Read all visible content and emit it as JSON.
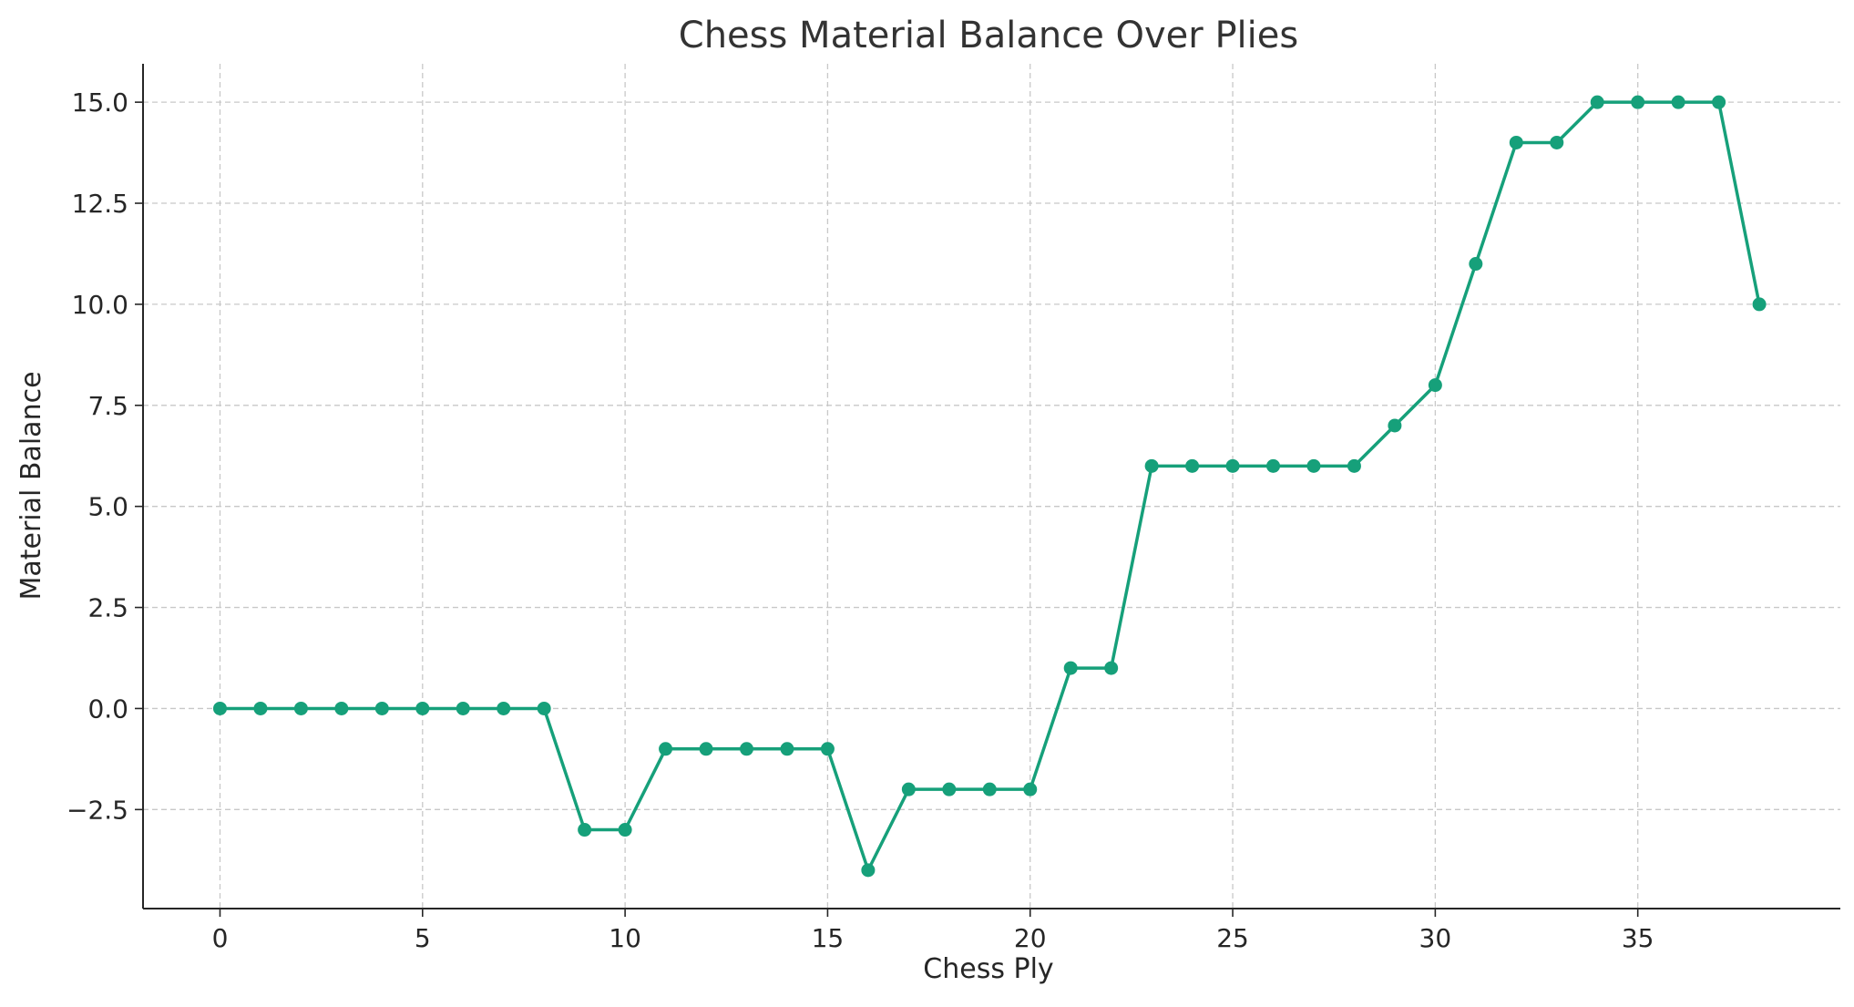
{
  "chart_data": {
    "type": "line",
    "title": "Chess Material Balance Over Plies",
    "xlabel": "Chess Ply",
    "ylabel": "Material Balance",
    "xlim": [
      -1.9,
      40
    ],
    "ylim": [
      -4.95,
      15.95
    ],
    "x_ticks": [
      0,
      5,
      10,
      15,
      20,
      25,
      30,
      35
    ],
    "x_tick_labels": [
      "0",
      "5",
      "10",
      "15",
      "20",
      "25",
      "30",
      "35"
    ],
    "y_ticks": [
      -2.5,
      0,
      2.5,
      5,
      7.5,
      10,
      12.5,
      15
    ],
    "y_tick_labels": [
      "−2.5",
      "0.0",
      "2.5",
      "5.0",
      "7.5",
      "10.0",
      "12.5",
      "15.0"
    ],
    "grid": true,
    "legend": "none",
    "series": [
      {
        "color": "#16a07a",
        "marker": "circle",
        "x": [
          0,
          1,
          2,
          3,
          4,
          5,
          6,
          7,
          8,
          9,
          10,
          11,
          12,
          13,
          14,
          15,
          16,
          17,
          18,
          19,
          20,
          21,
          22,
          23,
          24,
          25,
          26,
          27,
          28,
          29,
          30,
          31,
          32,
          33,
          34,
          35,
          36,
          37,
          38
        ],
        "values": [
          0,
          0,
          0,
          0,
          0,
          0,
          0,
          0,
          0,
          -3,
          -3,
          -1,
          -1,
          -1,
          -1,
          -1,
          -4,
          -2,
          -2,
          -2,
          -2,
          1,
          1,
          6,
          6,
          6,
          6,
          6,
          6,
          7,
          8,
          11,
          14,
          14,
          15,
          15,
          15,
          15,
          10
        ]
      }
    ]
  }
}
